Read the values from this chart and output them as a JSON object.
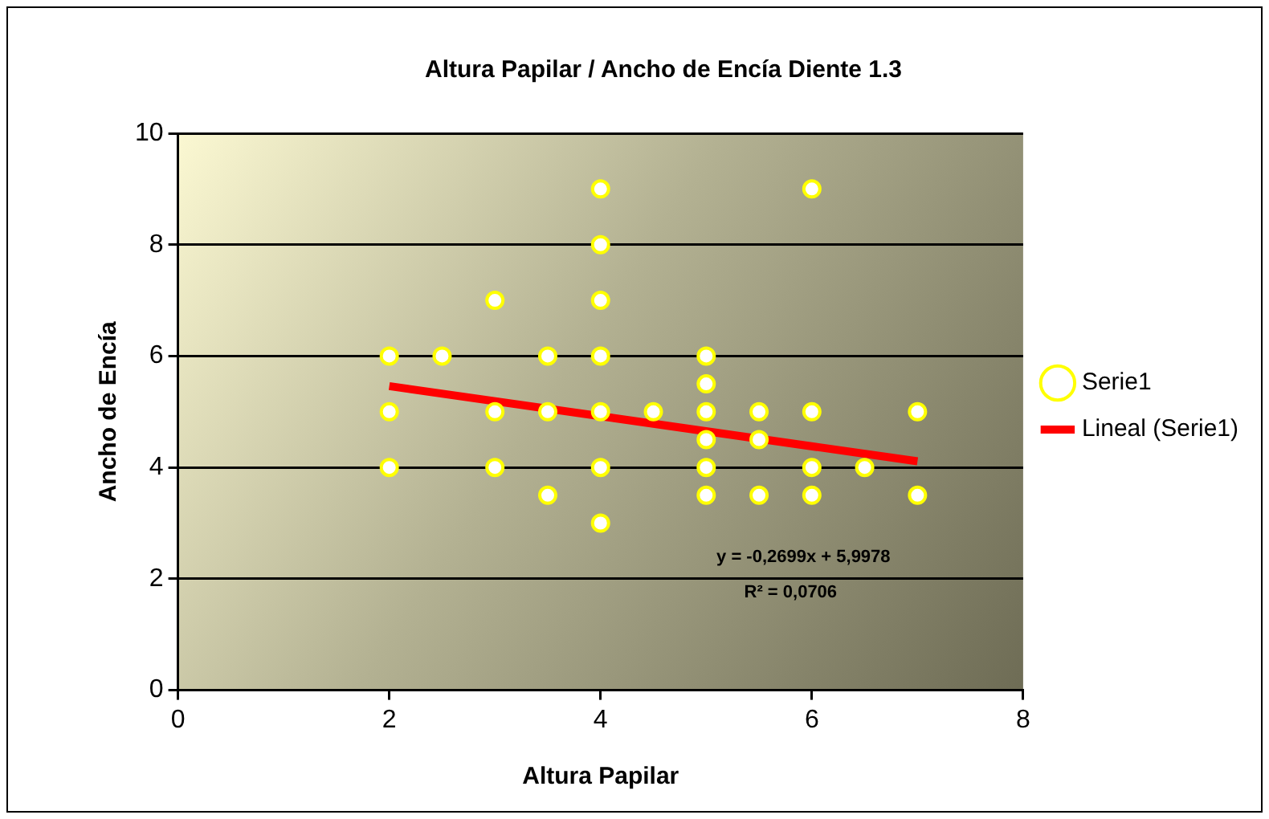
{
  "chart_data": {
    "type": "scatter",
    "title": "Altura Papilar / Ancho de Encía Diente 1.3",
    "xlabel": "Altura Papilar",
    "ylabel": "Ancho de Encía",
    "series": [
      {
        "name": "Serie1",
        "type": "scatter",
        "color": "#ffff00",
        "marker": "circle",
        "x": [
          2,
          2,
          2,
          2.5,
          3,
          3,
          3,
          3.5,
          3.5,
          3.5,
          4,
          4,
          4,
          4,
          4,
          4,
          4,
          4.5,
          5,
          5,
          5,
          5,
          5,
          5,
          5.5,
          5.5,
          5.5,
          6,
          6,
          6,
          6,
          6.5,
          7,
          7
        ],
        "values": [
          6,
          5,
          4,
          6,
          7,
          5,
          4,
          6,
          5,
          3.5,
          9,
          8,
          7,
          6,
          5,
          4,
          3,
          5,
          6,
          5.5,
          5,
          4.5,
          4,
          3.5,
          5,
          4.5,
          3.5,
          9,
          5,
          4,
          3.5,
          4,
          5,
          3.5
        ]
      },
      {
        "name": "Lineal (Serie1)",
        "type": "line",
        "color": "#ff0000",
        "marker": "none",
        "x": [
          2,
          7
        ],
        "values": [
          5.46,
          4.11
        ]
      }
    ],
    "annotations": [
      "y = -0,2699x + 5,9978",
      "R² = 0,0706"
    ],
    "xlim": [
      0,
      8
    ],
    "xticks": [
      0,
      2,
      4,
      6,
      8
    ],
    "ylim": [
      0,
      10
    ],
    "yticks": [
      0,
      2,
      4,
      6,
      8,
      10
    ],
    "grid": "y",
    "legend": "right"
  }
}
